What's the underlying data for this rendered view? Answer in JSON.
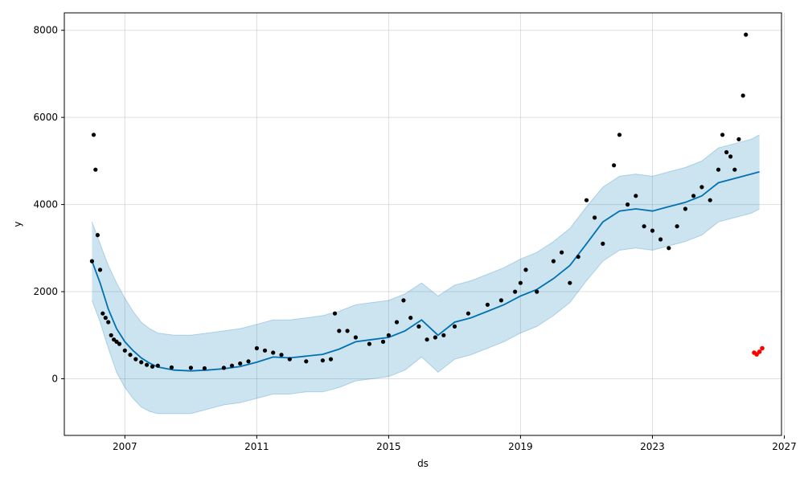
{
  "chart_data": {
    "type": "line",
    "title": "",
    "xlabel": "ds",
    "ylabel": "y",
    "xlim": [
      "2005-03-01",
      "2026-12-01"
    ],
    "ylim": [
      -1300,
      8400
    ],
    "x_ticks": [
      "2007",
      "2011",
      "2015",
      "2019",
      "2023",
      "2027"
    ],
    "y_ticks": [
      0,
      2000,
      4000,
      6000,
      8000
    ],
    "grid": true,
    "legend": "none",
    "colors": {
      "forecast": "#0072B2",
      "interval": "#0072B2",
      "observed": "#000000",
      "test": "#ff0000"
    },
    "series": [
      {
        "kind": "forecast",
        "x": [
          "2006-01-01",
          "2006-04-01",
          "2006-07-01",
          "2006-10-01",
          "2007-01-01",
          "2007-04-01",
          "2007-07-01",
          "2007-10-01",
          "2008-01-01",
          "2008-07-01",
          "2009-01-01",
          "2009-07-01",
          "2010-01-01",
          "2010-07-01",
          "2011-01-01",
          "2011-07-01",
          "2012-01-01",
          "2012-07-01",
          "2013-01-01",
          "2013-07-01",
          "2014-01-01",
          "2014-07-01",
          "2015-01-01",
          "2015-07-01",
          "2016-01-01",
          "2016-07-01",
          "2017-01-01",
          "2017-07-01",
          "2018-01-01",
          "2018-07-01",
          "2019-01-01",
          "2019-07-01",
          "2020-01-01",
          "2020-07-01",
          "2021-01-01",
          "2021-07-01",
          "2022-01-01",
          "2022-07-01",
          "2023-01-01",
          "2023-07-01",
          "2024-01-01",
          "2024-07-01",
          "2025-01-01",
          "2025-07-01",
          "2026-01-01",
          "2026-04-01"
        ],
        "y": [
          2700,
          2200,
          1600,
          1150,
          850,
          650,
          480,
          360,
          270,
          200,
          180,
          200,
          230,
          280,
          380,
          500,
          480,
          520,
          560,
          680,
          850,
          900,
          950,
          1100,
          1350,
          1000,
          1300,
          1400,
          1550,
          1700,
          1900,
          2050,
          2300,
          2600,
          3100,
          3600,
          3850,
          3900,
          3850,
          3950,
          4050,
          4200,
          4500,
          4600,
          4700,
          4750
        ]
      },
      {
        "kind": "upper_bound",
        "x": [
          "2006-01-01",
          "2006-04-01",
          "2006-07-01",
          "2006-10-01",
          "2007-01-01",
          "2007-04-01",
          "2007-07-01",
          "2007-10-01",
          "2008-01-01",
          "2008-07-01",
          "2009-01-01",
          "2009-07-01",
          "2010-01-01",
          "2010-07-01",
          "2011-01-01",
          "2011-07-01",
          "2012-01-01",
          "2012-07-01",
          "2013-01-01",
          "2013-07-01",
          "2014-01-01",
          "2014-07-01",
          "2015-01-01",
          "2015-07-01",
          "2016-01-01",
          "2016-07-01",
          "2017-01-01",
          "2017-07-01",
          "2018-01-01",
          "2018-07-01",
          "2019-01-01",
          "2019-07-01",
          "2020-01-01",
          "2020-07-01",
          "2021-01-01",
          "2021-07-01",
          "2022-01-01",
          "2022-07-01",
          "2023-01-01",
          "2023-07-01",
          "2024-01-01",
          "2024-07-01",
          "2025-01-01",
          "2025-07-01",
          "2026-01-01",
          "2026-04-01"
        ],
        "y": [
          3600,
          3100,
          2600,
          2200,
          1850,
          1550,
          1300,
          1150,
          1050,
          1000,
          1000,
          1050,
          1100,
          1150,
          1250,
          1350,
          1350,
          1400,
          1450,
          1550,
          1700,
          1750,
          1800,
          1950,
          2200,
          1900,
          2150,
          2250,
          2400,
          2550,
          2750,
          2900,
          3150,
          3450,
          3950,
          4400,
          4650,
          4700,
          4650,
          4750,
          4850,
          5000,
          5300,
          5400,
          5500,
          5600
        ]
      },
      {
        "kind": "lower_bound",
        "x": [
          "2006-01-01",
          "2006-04-01",
          "2006-07-01",
          "2006-10-01",
          "2007-01-01",
          "2007-04-01",
          "2007-07-01",
          "2007-10-01",
          "2008-01-01",
          "2008-07-01",
          "2009-01-01",
          "2009-07-01",
          "2010-01-01",
          "2010-07-01",
          "2011-01-01",
          "2011-07-01",
          "2012-01-01",
          "2012-07-01",
          "2013-01-01",
          "2013-07-01",
          "2014-01-01",
          "2014-07-01",
          "2015-01-01",
          "2015-07-01",
          "2016-01-01",
          "2016-07-01",
          "2017-01-01",
          "2017-07-01",
          "2018-01-01",
          "2018-07-01",
          "2019-01-01",
          "2019-07-01",
          "2020-01-01",
          "2020-07-01",
          "2021-01-01",
          "2021-07-01",
          "2022-01-01",
          "2022-07-01",
          "2023-01-01",
          "2023-07-01",
          "2024-01-01",
          "2024-07-01",
          "2025-01-01",
          "2025-07-01",
          "2026-01-01",
          "2026-04-01"
        ],
        "y": [
          1800,
          1300,
          700,
          150,
          -200,
          -450,
          -650,
          -750,
          -800,
          -800,
          -800,
          -700,
          -600,
          -550,
          -450,
          -350,
          -350,
          -300,
          -300,
          -200,
          -50,
          0,
          50,
          200,
          500,
          150,
          450,
          550,
          700,
          850,
          1050,
          1200,
          1450,
          1750,
          2250,
          2700,
          2950,
          3000,
          2950,
          3050,
          3150,
          3300,
          3600,
          3700,
          3800,
          3900
        ]
      },
      {
        "kind": "observed",
        "x": [
          "2006-01-01",
          "2006-01-20",
          "2006-02-10",
          "2006-03-05",
          "2006-04-01",
          "2006-05-01",
          "2006-06-01",
          "2006-07-01",
          "2006-08-01",
          "2006-09-01",
          "2006-10-01",
          "2006-11-01",
          "2007-01-01",
          "2007-03-01",
          "2007-05-01",
          "2007-07-01",
          "2007-09-01",
          "2007-11-01",
          "2008-01-01",
          "2008-06-01",
          "2009-01-01",
          "2009-06-01",
          "2010-01-01",
          "2010-04-01",
          "2010-07-01",
          "2010-10-01",
          "2011-01-01",
          "2011-04-01",
          "2011-07-01",
          "2011-10-01",
          "2012-01-01",
          "2012-07-01",
          "2013-01-01",
          "2013-04-01",
          "2013-05-15",
          "2013-07-01",
          "2013-10-01",
          "2014-01-01",
          "2014-06-01",
          "2014-11-01",
          "2015-01-01",
          "2015-04-01",
          "2015-06-15",
          "2015-09-01",
          "2015-12-01",
          "2016-03-01",
          "2016-06-01",
          "2016-09-01",
          "2017-01-01",
          "2017-06-01",
          "2018-01-01",
          "2018-06-01",
          "2018-11-01",
          "2019-01-01",
          "2019-03-01",
          "2019-07-01",
          "2020-01-01",
          "2020-04-01",
          "2020-07-01",
          "2020-10-01",
          "2021-01-01",
          "2021-04-01",
          "2021-07-01",
          "2021-11-01",
          "2022-01-01",
          "2022-04-01",
          "2022-07-01",
          "2022-10-01",
          "2023-01-01",
          "2023-04-01",
          "2023-07-01",
          "2023-10-01",
          "2024-01-01",
          "2024-04-01",
          "2024-07-01",
          "2024-10-01",
          "2025-01-01",
          "2025-02-15",
          "2025-04-01",
          "2025-05-15",
          "2025-07-01",
          "2025-08-15",
          "2025-10-01",
          "2025-11-01"
        ],
        "y": [
          2700,
          5600,
          4800,
          3300,
          2500,
          1500,
          1400,
          1300,
          1000,
          900,
          850,
          800,
          650,
          550,
          450,
          380,
          320,
          280,
          300,
          260,
          250,
          240,
          250,
          300,
          350,
          400,
          700,
          650,
          600,
          550,
          450,
          400,
          420,
          450,
          1500,
          1100,
          1100,
          950,
          800,
          850,
          1000,
          1300,
          1800,
          1400,
          1200,
          900,
          950,
          1000,
          1200,
          1500,
          1700,
          1800,
          2000,
          2200,
          2500,
          2000,
          2700,
          2900,
          2200,
          2800,
          4100,
          3700,
          3100,
          4900,
          5600,
          4000,
          4200,
          3500,
          3400,
          3200,
          3000,
          3500,
          3900,
          4200,
          4400,
          4100,
          4800,
          5600,
          5200,
          5100,
          4800,
          5500,
          6500,
          7900
        ]
      },
      {
        "kind": "test",
        "x": [
          "2026-02-01",
          "2026-03-01",
          "2026-04-01",
          "2026-05-01"
        ],
        "y": [
          600,
          560,
          620,
          700
        ]
      }
    ]
  }
}
